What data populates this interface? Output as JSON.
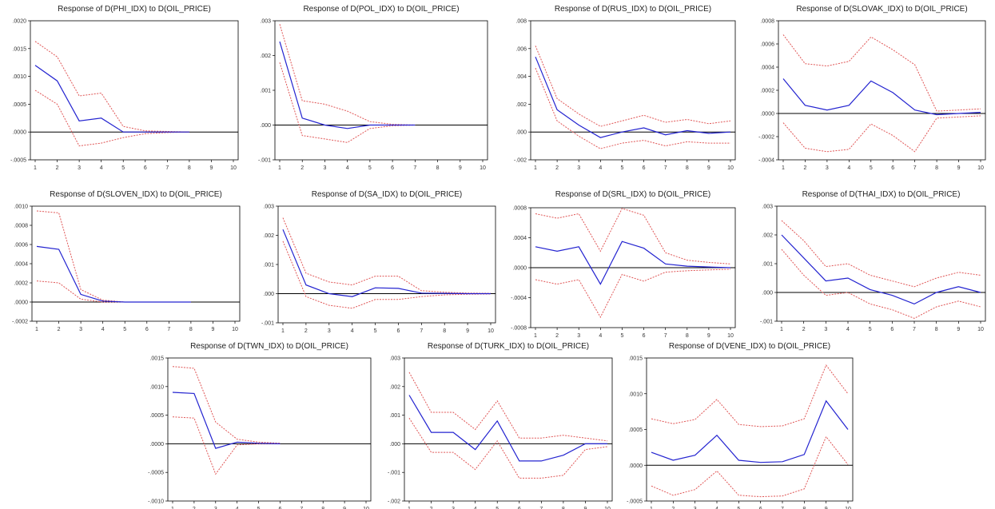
{
  "colors": {
    "response": "#2323d0",
    "band": "#e05656",
    "zero_line": "#000000",
    "frame": "#000000"
  },
  "chart_data": [
    {
      "type": "line",
      "title": "Response of D(PHI_IDX) to D(OIL_PRICE)",
      "x": [
        1,
        2,
        3,
        4,
        5,
        6,
        7,
        8
      ],
      "ylim": [
        -0.0005,
        0.002
      ],
      "yticks": [
        -0.0005,
        0.0,
        0.0005,
        0.001,
        0.0015,
        0.002
      ],
      "ytick_labels": [
        "-.0005",
        ".0000",
        ".0005",
        ".0010",
        ".0015",
        ".0020"
      ],
      "xticks": [
        1,
        2,
        3,
        4,
        5,
        6,
        7,
        8,
        9,
        10
      ],
      "xtick_labels": [
        "1",
        "2",
        "3",
        "4",
        "5",
        "6",
        "7",
        "8",
        "9",
        "10"
      ],
      "series": [
        {
          "role": "response",
          "values": [
            0.0012,
            0.00092,
            0.0002,
            0.00025,
            0.0,
            0.0,
            0.0,
            0.0
          ]
        },
        {
          "role": "upper",
          "values": [
            0.00163,
            0.00135,
            0.00065,
            0.0007,
            0.0001,
            2e-05,
            1e-05,
            0.0
          ]
        },
        {
          "role": "lower",
          "values": [
            0.00075,
            0.0005,
            -0.00025,
            -0.0002,
            -0.0001,
            -3e-05,
            -1e-05,
            0.0
          ]
        }
      ]
    },
    {
      "type": "line",
      "title": "Response of D(POL_IDX) to D(OIL_PRICE)",
      "x": [
        1,
        2,
        3,
        4,
        5,
        6,
        7
      ],
      "ylim": [
        -0.001,
        0.003
      ],
      "yticks": [
        -0.001,
        0.0,
        0.001,
        0.002,
        0.003
      ],
      "ytick_labels": [
        "-.001",
        ".000",
        ".001",
        ".002",
        ".003"
      ],
      "xticks": [
        1,
        2,
        3,
        4,
        5,
        6,
        7,
        8,
        9,
        10
      ],
      "xtick_labels": [
        "1",
        "2",
        "3",
        "4",
        "5",
        "6",
        "7",
        "8",
        "9",
        "10"
      ],
      "series": [
        {
          "role": "response",
          "values": [
            0.0024,
            0.0002,
            0.0,
            -0.0001,
            0.0,
            0.0,
            0.0
          ]
        },
        {
          "role": "upper",
          "values": [
            0.0029,
            0.0007,
            0.0006,
            0.0004,
            0.0001,
            2e-05,
            0.0
          ]
        },
        {
          "role": "lower",
          "values": [
            0.0018,
            -0.0003,
            -0.0004,
            -0.0005,
            -0.0001,
            -2e-05,
            0.0
          ]
        }
      ]
    },
    {
      "type": "line",
      "title": "Response of D(RUS_IDX) to D(OIL_PRICE)",
      "x": [
        1,
        2,
        3,
        4,
        5,
        6,
        7,
        8,
        9,
        10
      ],
      "ylim": [
        -0.002,
        0.008
      ],
      "yticks": [
        -0.002,
        0.0,
        0.002,
        0.004,
        0.006,
        0.008
      ],
      "ytick_labels": [
        "-.002",
        ".000",
        ".002",
        ".004",
        ".006",
        ".008"
      ],
      "xticks": [
        1,
        2,
        3,
        4,
        5,
        6,
        7,
        8,
        9,
        10
      ],
      "xtick_labels": [
        "1",
        "2",
        "3",
        "4",
        "5",
        "6",
        "7",
        "8",
        "9",
        "10"
      ],
      "series": [
        {
          "role": "response",
          "values": [
            0.0054,
            0.0016,
            0.0005,
            -0.0004,
            0.0,
            0.0003,
            -0.0002,
            0.0001,
            -0.0001,
            0.0
          ]
        },
        {
          "role": "upper",
          "values": [
            0.0062,
            0.0024,
            0.0013,
            0.0004,
            0.0008,
            0.0012,
            0.0007,
            0.0009,
            0.0006,
            0.0008
          ]
        },
        {
          "role": "lower",
          "values": [
            0.0046,
            0.0008,
            -0.0003,
            -0.0012,
            -0.0008,
            -0.0006,
            -0.001,
            -0.0007,
            -0.0008,
            -0.0008
          ]
        }
      ]
    },
    {
      "type": "line",
      "title": "Response of D(SLOVAK_IDX) to D(OIL_PRICE)",
      "x": [
        1,
        2,
        3,
        4,
        5,
        6,
        7,
        8,
        9,
        10
      ],
      "ylim": [
        -0.0004,
        0.0008
      ],
      "yticks": [
        -0.0004,
        -0.0002,
        0.0,
        0.0002,
        0.0004,
        0.0006,
        0.0008
      ],
      "ytick_labels": [
        "-.0004",
        "-.0002",
        ".0000",
        ".0002",
        ".0004",
        ".0006",
        ".0008"
      ],
      "xticks": [
        1,
        2,
        3,
        4,
        5,
        6,
        7,
        8,
        9,
        10
      ],
      "xtick_labels": [
        "1",
        "2",
        "3",
        "4",
        "5",
        "6",
        "7",
        "8",
        "9",
        "10"
      ],
      "series": [
        {
          "role": "response",
          "values": [
            0.0003,
            7e-05,
            3e-05,
            7e-05,
            0.00028,
            0.00018,
            3e-05,
            -1e-05,
            0.0,
            1e-05
          ]
        },
        {
          "role": "upper",
          "values": [
            0.00068,
            0.00043,
            0.00041,
            0.00045,
            0.00066,
            0.00055,
            0.00042,
            2e-05,
            3e-05,
            4e-05
          ]
        },
        {
          "role": "lower",
          "values": [
            -8e-05,
            -0.0003,
            -0.00033,
            -0.00031,
            -9e-05,
            -0.00019,
            -0.00033,
            -4e-05,
            -3e-05,
            -2e-05
          ]
        }
      ]
    },
    {
      "type": "line",
      "title": "Response of D(SLOVEN_IDX) to D(OIL_PRICE)",
      "x": [
        1,
        2,
        3,
        4,
        5,
        6,
        7,
        8
      ],
      "ylim": [
        -0.0002,
        0.001
      ],
      "yticks": [
        -0.0002,
        0.0,
        0.0002,
        0.0004,
        0.0006,
        0.0008,
        0.001
      ],
      "ytick_labels": [
        "-.0002",
        ".0000",
        ".0002",
        ".0004",
        ".0006",
        ".0008",
        ".0010"
      ],
      "xticks": [
        1,
        2,
        3,
        4,
        5,
        6,
        7,
        8,
        9,
        10
      ],
      "xtick_labels": [
        "1",
        "2",
        "3",
        "4",
        "5",
        "6",
        "7",
        "8",
        "9",
        "10"
      ],
      "series": [
        {
          "role": "response",
          "values": [
            0.00058,
            0.00055,
            8e-05,
            1e-05,
            0.0,
            0.0,
            0.0,
            0.0
          ]
        },
        {
          "role": "upper",
          "values": [
            0.00095,
            0.00093,
            0.00013,
            2e-05,
            0.0,
            0.0,
            0.0,
            0.0
          ]
        },
        {
          "role": "lower",
          "values": [
            0.00022,
            0.0002,
            3e-05,
            0.0,
            0.0,
            0.0,
            0.0,
            0.0
          ]
        }
      ]
    },
    {
      "type": "line",
      "title": "Response of D(SA_IDX) to D(OIL_PRICE)",
      "x": [
        1,
        2,
        3,
        4,
        5,
        6,
        7,
        8,
        9,
        10
      ],
      "ylim": [
        -0.001,
        0.003
      ],
      "yticks": [
        -0.001,
        0.0,
        0.001,
        0.002,
        0.003
      ],
      "ytick_labels": [
        "-.001",
        ".000",
        ".001",
        ".002",
        ".003"
      ],
      "xticks": [
        1,
        2,
        3,
        4,
        5,
        6,
        7,
        8,
        9,
        10
      ],
      "xtick_labels": [
        "1",
        "2",
        "3",
        "4",
        "5",
        "6",
        "7",
        "8",
        "9",
        "10"
      ],
      "series": [
        {
          "role": "response",
          "values": [
            0.0022,
            0.0003,
            0.0,
            -0.0001,
            0.0002,
            0.00018,
            2e-05,
            1e-05,
            0.0,
            0.0
          ]
        },
        {
          "role": "upper",
          "values": [
            0.0026,
            0.0007,
            0.0004,
            0.0003,
            0.0006,
            0.0006,
            0.0001,
            5e-05,
            2e-05,
            1e-05
          ]
        },
        {
          "role": "lower",
          "values": [
            0.0018,
            -0.0001,
            -0.0004,
            -0.0005,
            -0.0002,
            -0.0002,
            -0.0001,
            -4e-05,
            -2e-05,
            -1e-05
          ]
        }
      ]
    },
    {
      "type": "line",
      "title": "Response of D(SRL_IDX) to D(OIL_PRICE)",
      "x": [
        1,
        2,
        3,
        4,
        5,
        6,
        7,
        8,
        9,
        10
      ],
      "ylim": [
        -0.0008,
        0.0008
      ],
      "yticks": [
        -0.0008,
        -0.0004,
        0.0,
        0.0004,
        0.0008
      ],
      "ytick_labels": [
        "-.0008",
        "-.0004",
        ".0000",
        ".0004",
        ".0008"
      ],
      "xticks": [
        1,
        2,
        3,
        4,
        5,
        6,
        7,
        8,
        9,
        10
      ],
      "xtick_labels": [
        "1",
        "2",
        "3",
        "4",
        "5",
        "6",
        "7",
        "8",
        "9",
        "10"
      ],
      "series": [
        {
          "role": "response",
          "values": [
            0.00028,
            0.00022,
            0.00028,
            -0.00022,
            0.00035,
            0.00026,
            5e-05,
            2e-05,
            1e-05,
            0.0
          ]
        },
        {
          "role": "upper",
          "values": [
            0.00072,
            0.00066,
            0.00072,
            0.00022,
            0.00079,
            0.0007,
            0.0002,
            0.0001,
            7e-05,
            5e-05
          ]
        },
        {
          "role": "lower",
          "values": [
            -0.00016,
            -0.00022,
            -0.00016,
            -0.00066,
            -9e-05,
            -0.00018,
            -6e-05,
            -4e-05,
            -3e-05,
            -2e-05
          ]
        }
      ]
    },
    {
      "type": "line",
      "title": "Response of D(THAI_IDX) to D(OIL_PRICE)",
      "x": [
        1,
        2,
        3,
        4,
        5,
        6,
        7,
        8,
        9,
        10
      ],
      "ylim": [
        -0.001,
        0.003
      ],
      "yticks": [
        -0.001,
        0.0,
        0.001,
        0.002,
        0.003
      ],
      "ytick_labels": [
        "-.001",
        ".000",
        ".001",
        ".002",
        ".003"
      ],
      "xticks": [
        1,
        2,
        3,
        4,
        5,
        6,
        7,
        8,
        9,
        10
      ],
      "xtick_labels": [
        "1",
        "2",
        "3",
        "4",
        "5",
        "6",
        "7",
        "8",
        "9",
        "10"
      ],
      "series": [
        {
          "role": "response",
          "values": [
            0.002,
            0.0012,
            0.0004,
            0.0005,
            0.0001,
            -0.0001,
            -0.0004,
            0.0,
            0.0002,
            0.0
          ]
        },
        {
          "role": "upper",
          "values": [
            0.0025,
            0.0018,
            0.0009,
            0.001,
            0.0006,
            0.0004,
            0.0002,
            0.0005,
            0.0007,
            0.0006
          ]
        },
        {
          "role": "lower",
          "values": [
            0.0015,
            0.0006,
            -0.0001,
            0.0,
            -0.0004,
            -0.0006,
            -0.0009,
            -0.0005,
            -0.0003,
            -0.0005
          ]
        }
      ]
    },
    {
      "type": "line",
      "title": "Response of D(TWN_IDX) to D(OIL_PRICE)",
      "x": [
        1,
        2,
        3,
        4,
        5,
        6
      ],
      "ylim": [
        -0.001,
        0.0015
      ],
      "yticks": [
        -0.001,
        -0.0005,
        0.0,
        0.0005,
        0.001,
        0.0015
      ],
      "ytick_labels": [
        "-.0010",
        "-.0005",
        ".0000",
        ".0005",
        ".0010",
        ".0015"
      ],
      "xticks": [
        1,
        2,
        3,
        4,
        5,
        6,
        7,
        8,
        9,
        10
      ],
      "xtick_labels": [
        "1",
        "2",
        "3",
        "4",
        "5",
        "6",
        "7",
        "8",
        "9",
        "10"
      ],
      "series": [
        {
          "role": "response",
          "values": [
            0.0009,
            0.00088,
            -8e-05,
            3e-05,
            1e-05,
            0.0
          ]
        },
        {
          "role": "upper",
          "values": [
            0.00135,
            0.00132,
            0.00038,
            8e-05,
            3e-05,
            1e-05
          ]
        },
        {
          "role": "lower",
          "values": [
            0.00047,
            0.00045,
            -0.00053,
            -2e-05,
            0.0,
            0.0
          ]
        }
      ]
    },
    {
      "type": "line",
      "title": "Response of D(TURK_IDX) to D(OIL_PRICE)",
      "x": [
        1,
        2,
        3,
        4,
        5,
        6,
        7,
        8,
        9,
        10
      ],
      "ylim": [
        -0.002,
        0.003
      ],
      "yticks": [
        -0.002,
        -0.001,
        0.0,
        0.001,
        0.002,
        0.003
      ],
      "ytick_labels": [
        "-.002",
        "-.001",
        ".000",
        ".001",
        ".002",
        ".003"
      ],
      "xticks": [
        1,
        2,
        3,
        4,
        5,
        6,
        7,
        8,
        9,
        10
      ],
      "xtick_labels": [
        "1",
        "2",
        "3",
        "4",
        "5",
        "6",
        "7",
        "8",
        "9",
        "10"
      ],
      "series": [
        {
          "role": "response",
          "values": [
            0.0017,
            0.0004,
            0.0004,
            -0.0002,
            0.0008,
            -0.0006,
            -0.0006,
            -0.0004,
            0.0,
            0.0
          ]
        },
        {
          "role": "upper",
          "values": [
            0.0025,
            0.0011,
            0.0011,
            0.0005,
            0.0015,
            0.0002,
            0.0002,
            0.0003,
            0.0002,
            0.0001
          ]
        },
        {
          "role": "lower",
          "values": [
            0.0009,
            -0.0003,
            -0.0003,
            -0.0009,
            0.0001,
            -0.0012,
            -0.0012,
            -0.0011,
            -0.0002,
            -0.0001
          ]
        }
      ]
    },
    {
      "type": "line",
      "title": "Response of D(VENE_IDX) to D(OIL_PRICE)",
      "x": [
        1,
        2,
        3,
        4,
        5,
        6,
        7,
        8,
        9,
        10
      ],
      "ylim": [
        -0.0005,
        0.0015
      ],
      "yticks": [
        -0.0005,
        0.0,
        0.0005,
        0.001,
        0.0015
      ],
      "ytick_labels": [
        "-.0005",
        ".0000",
        ".0005",
        ".0010",
        ".0015"
      ],
      "xticks": [
        1,
        2,
        3,
        4,
        5,
        6,
        7,
        8,
        9,
        10
      ],
      "xtick_labels": [
        "1",
        "2",
        "3",
        "4",
        "5",
        "6",
        "7",
        "8",
        "9",
        "10"
      ],
      "series": [
        {
          "role": "response",
          "values": [
            0.00018,
            7e-05,
            0.00014,
            0.00042,
            7e-05,
            4e-05,
            5e-05,
            0.00015,
            0.0009,
            0.0005
          ]
        },
        {
          "role": "upper",
          "values": [
            0.00065,
            0.00058,
            0.00064,
            0.00092,
            0.00057,
            0.00054,
            0.00055,
            0.00065,
            0.0014,
            0.001
          ]
        },
        {
          "role": "lower",
          "values": [
            -0.00029,
            -0.00042,
            -0.00034,
            -8e-05,
            -0.00042,
            -0.00044,
            -0.00043,
            -0.00033,
            0.0004,
            1e-05
          ]
        }
      ]
    }
  ]
}
